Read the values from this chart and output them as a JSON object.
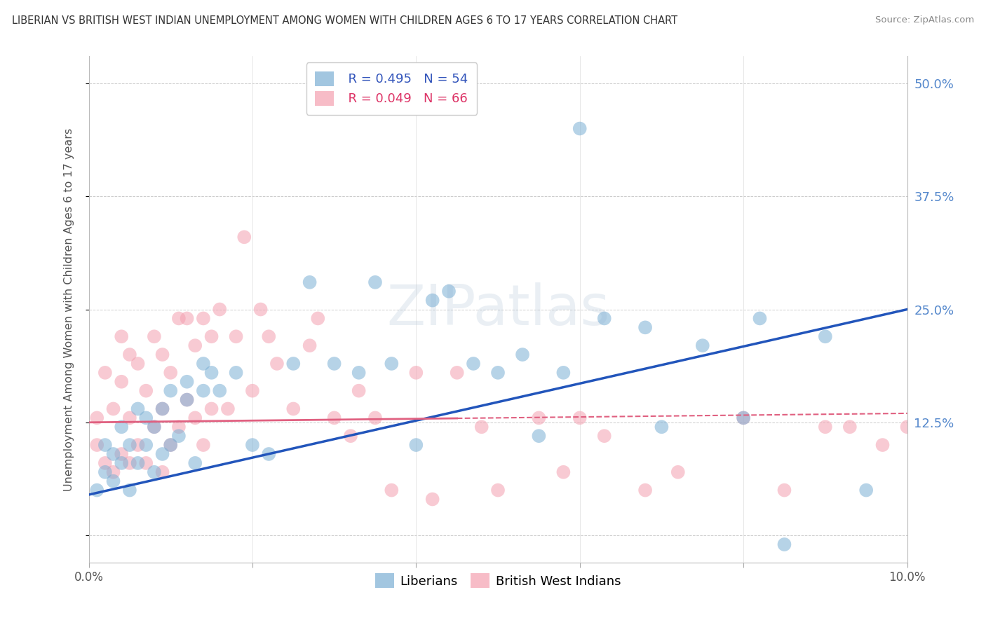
{
  "title": "LIBERIAN VS BRITISH WEST INDIAN UNEMPLOYMENT AMONG WOMEN WITH CHILDREN AGES 6 TO 17 YEARS CORRELATION CHART",
  "source": "Source: ZipAtlas.com",
  "ylabel": "Unemployment Among Women with Children Ages 6 to 17 years",
  "xlim": [
    0.0,
    0.1
  ],
  "ylim": [
    -0.03,
    0.53
  ],
  "blue_color": "#7BAFD4",
  "pink_color": "#F4A0B0",
  "blue_line_color": "#2255BB",
  "pink_line_color": "#E06080",
  "watermark": "ZIPatlas",
  "legend_blue_r": "R = 0.495",
  "legend_blue_n": "N = 54",
  "legend_pink_r": "R = 0.049",
  "legend_pink_n": "N = 66",
  "blue_intercept": 0.045,
  "blue_slope": 2.05,
  "pink_intercept": 0.125,
  "pink_slope": 0.1,
  "blue_x": [
    0.001,
    0.002,
    0.002,
    0.003,
    0.003,
    0.004,
    0.004,
    0.005,
    0.005,
    0.006,
    0.006,
    0.007,
    0.007,
    0.008,
    0.008,
    0.009,
    0.009,
    0.01,
    0.01,
    0.011,
    0.012,
    0.012,
    0.013,
    0.014,
    0.014,
    0.015,
    0.016,
    0.018,
    0.02,
    0.022,
    0.025,
    0.027,
    0.03,
    0.033,
    0.035,
    0.037,
    0.04,
    0.042,
    0.044,
    0.047,
    0.05,
    0.053,
    0.055,
    0.058,
    0.06,
    0.063,
    0.068,
    0.07,
    0.075,
    0.08,
    0.082,
    0.085,
    0.09,
    0.095
  ],
  "blue_y": [
    0.05,
    0.07,
    0.1,
    0.06,
    0.09,
    0.08,
    0.12,
    0.05,
    0.1,
    0.08,
    0.14,
    0.1,
    0.13,
    0.07,
    0.12,
    0.09,
    0.14,
    0.1,
    0.16,
    0.11,
    0.15,
    0.17,
    0.08,
    0.16,
    0.19,
    0.18,
    0.16,
    0.18,
    0.1,
    0.09,
    0.19,
    0.28,
    0.19,
    0.18,
    0.28,
    0.19,
    0.1,
    0.26,
    0.27,
    0.19,
    0.18,
    0.2,
    0.11,
    0.18,
    0.45,
    0.24,
    0.23,
    0.12,
    0.21,
    0.13,
    0.24,
    -0.01,
    0.22,
    0.05
  ],
  "pink_x": [
    0.001,
    0.001,
    0.002,
    0.002,
    0.003,
    0.003,
    0.004,
    0.004,
    0.004,
    0.005,
    0.005,
    0.005,
    0.006,
    0.006,
    0.007,
    0.007,
    0.008,
    0.008,
    0.009,
    0.009,
    0.009,
    0.01,
    0.01,
    0.011,
    0.011,
    0.012,
    0.012,
    0.013,
    0.013,
    0.014,
    0.014,
    0.015,
    0.015,
    0.016,
    0.017,
    0.018,
    0.019,
    0.02,
    0.021,
    0.022,
    0.023,
    0.025,
    0.027,
    0.028,
    0.03,
    0.032,
    0.033,
    0.035,
    0.037,
    0.04,
    0.042,
    0.045,
    0.048,
    0.05,
    0.055,
    0.058,
    0.06,
    0.063,
    0.068,
    0.072,
    0.08,
    0.085,
    0.09,
    0.093,
    0.097,
    0.1
  ],
  "pink_y": [
    0.1,
    0.13,
    0.08,
    0.18,
    0.07,
    0.14,
    0.09,
    0.17,
    0.22,
    0.08,
    0.13,
    0.2,
    0.1,
    0.19,
    0.08,
    0.16,
    0.12,
    0.22,
    0.07,
    0.14,
    0.2,
    0.1,
    0.18,
    0.12,
    0.24,
    0.15,
    0.24,
    0.13,
    0.21,
    0.1,
    0.24,
    0.14,
    0.22,
    0.25,
    0.14,
    0.22,
    0.33,
    0.16,
    0.25,
    0.22,
    0.19,
    0.14,
    0.21,
    0.24,
    0.13,
    0.11,
    0.16,
    0.13,
    0.05,
    0.18,
    0.04,
    0.18,
    0.12,
    0.05,
    0.13,
    0.07,
    0.13,
    0.11,
    0.05,
    0.07,
    0.13,
    0.05,
    0.12,
    0.12,
    0.1,
    0.12
  ]
}
